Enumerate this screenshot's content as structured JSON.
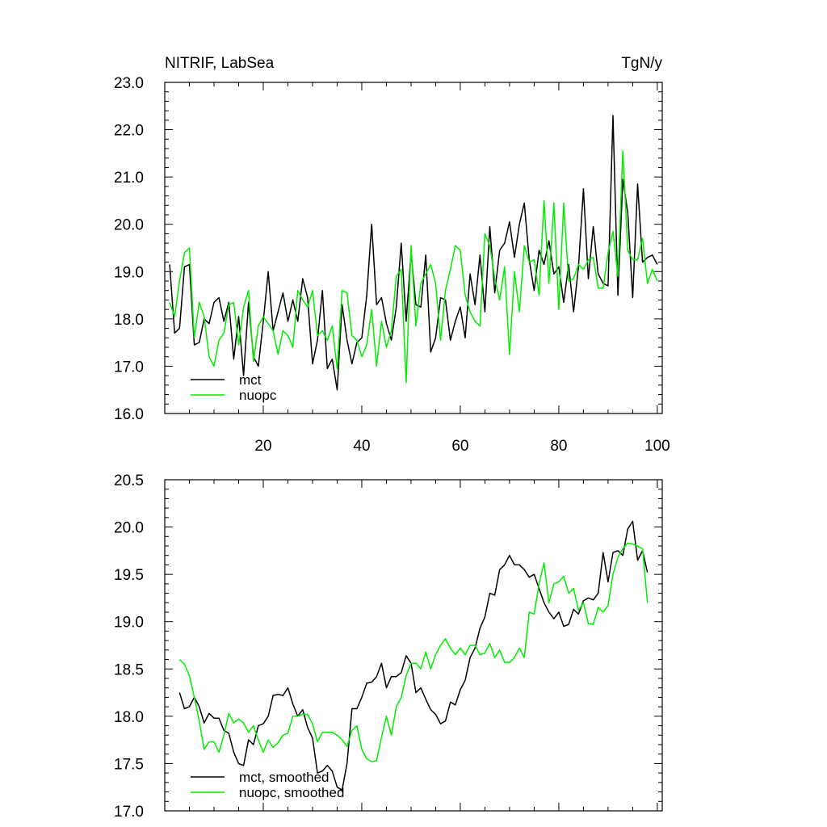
{
  "chart_data": [
    {
      "type": "line",
      "title": "NITRIF, LabSea",
      "units": "TgN/y",
      "xlim": [
        0,
        101
      ],
      "ylim": [
        16.0,
        23.0
      ],
      "x_ticks": [
        20,
        40,
        60,
        80,
        100
      ],
      "y_ticks": [
        "16.0",
        "17.0",
        "18.0",
        "19.0",
        "20.0",
        "21.0",
        "22.0",
        "23.0"
      ],
      "legend_position": "bottom-left",
      "grid": false,
      "x": [
        1,
        2,
        3,
        4,
        5,
        6,
        7,
        8,
        9,
        10,
        11,
        12,
        13,
        14,
        15,
        16,
        17,
        18,
        19,
        20,
        21,
        22,
        23,
        24,
        25,
        26,
        27,
        28,
        29,
        30,
        31,
        32,
        33,
        34,
        35,
        36,
        37,
        38,
        39,
        40,
        41,
        42,
        43,
        44,
        45,
        46,
        47,
        48,
        49,
        50,
        51,
        52,
        53,
        54,
        55,
        56,
        57,
        58,
        59,
        60,
        61,
        62,
        63,
        64,
        65,
        66,
        67,
        68,
        69,
        70,
        71,
        72,
        73,
        74,
        75,
        76,
        77,
        78,
        79,
        80,
        81,
        82,
        83,
        84,
        85,
        86,
        87,
        88,
        89,
        90,
        91,
        92,
        93,
        94,
        95,
        96,
        97,
        98,
        99,
        100
      ],
      "series": [
        {
          "name": "mct",
          "color": "#000000",
          "values": [
            19.15,
            17.7,
            17.8,
            19.1,
            19.15,
            17.45,
            17.5,
            18.0,
            17.9,
            18.35,
            18.45,
            17.95,
            18.35,
            17.15,
            18.05,
            16.8,
            18.35,
            17.2,
            17.0,
            17.95,
            19.0,
            17.75,
            18.15,
            18.55,
            17.95,
            18.4,
            17.95,
            18.85,
            18.45,
            17.05,
            17.55,
            18.6,
            16.95,
            17.15,
            16.5,
            18.3,
            17.55,
            17.05,
            17.5,
            17.6,
            18.5,
            20.0,
            18.3,
            18.45,
            17.9,
            17.55,
            18.25,
            19.6,
            17.95,
            19.4,
            18.3,
            18.25,
            19.35,
            17.3,
            17.6,
            18.45,
            18.4,
            17.55,
            17.95,
            18.25,
            17.6,
            18.95,
            18.3,
            19.35,
            18.15,
            19.95,
            18.55,
            19.45,
            19.6,
            20.05,
            19.3,
            20.0,
            20.45,
            19.25,
            18.6,
            19.45,
            19.15,
            19.65,
            18.95,
            19.1,
            18.35,
            19.15,
            18.15,
            19.1,
            20.75,
            18.85,
            19.95,
            18.95,
            18.75,
            18.7,
            22.3,
            18.5,
            20.95,
            20.25,
            18.45,
            20.85,
            19.2,
            19.3,
            19.35,
            19.15
          ]
        },
        {
          "name": "nuopc",
          "color": "#00ee00",
          "values": [
            18.35,
            18.05,
            18.8,
            19.4,
            19.5,
            17.6,
            18.35,
            18.05,
            17.2,
            17.0,
            17.55,
            17.7,
            18.3,
            18.35,
            17.45,
            18.25,
            18.6,
            17.1,
            17.85,
            18.05,
            17.9,
            17.75,
            17.25,
            17.75,
            17.65,
            17.4,
            18.6,
            18.4,
            18.25,
            18.6,
            17.65,
            17.75,
            17.55,
            17.85,
            16.95,
            18.6,
            18.55,
            17.65,
            17.55,
            17.2,
            17.45,
            18.2,
            17.0,
            17.95,
            17.4,
            17.75,
            18.9,
            19.05,
            16.65,
            19.55,
            17.85,
            18.75,
            18.95,
            19.15,
            18.75,
            17.55,
            18.6,
            19.05,
            19.55,
            19.45,
            18.5,
            18.15,
            17.95,
            17.85,
            19.8,
            19.55,
            18.85,
            18.4,
            19.1,
            17.25,
            19.0,
            18.15,
            19.55,
            19.2,
            19.25,
            18.5,
            20.5,
            18.75,
            20.45,
            18.2,
            20.45,
            18.8,
            18.85,
            19.15,
            19.05,
            19.25,
            19.3,
            18.65,
            18.65,
            19.4,
            19.85,
            18.9,
            21.55,
            19.45,
            19.25,
            19.25,
            19.7,
            18.75,
            19.05,
            18.8
          ]
        }
      ]
    },
    {
      "type": "line",
      "title": "",
      "xlim": [
        0,
        101
      ],
      "ylim": [
        17.0,
        20.5
      ],
      "y_ticks": [
        "17.0",
        "17.5",
        "18.0",
        "18.5",
        "19.0",
        "19.5",
        "20.0",
        "20.5"
      ],
      "legend_position": "bottom-left",
      "grid": false,
      "x": [
        3,
        4,
        5,
        6,
        7,
        8,
        9,
        10,
        11,
        12,
        13,
        14,
        15,
        16,
        17,
        18,
        19,
        20,
        21,
        22,
        23,
        24,
        25,
        26,
        27,
        28,
        29,
        30,
        31,
        32,
        33,
        34,
        35,
        36,
        37,
        38,
        39,
        40,
        41,
        42,
        43,
        44,
        45,
        46,
        47,
        48,
        49,
        50,
        51,
        52,
        53,
        54,
        55,
        56,
        57,
        58,
        59,
        60,
        61,
        62,
        63,
        64,
        65,
        66,
        67,
        68,
        69,
        70,
        71,
        72,
        73,
        74,
        75,
        76,
        77,
        78,
        79,
        80,
        81,
        82,
        83,
        84,
        85,
        86,
        87,
        88,
        89,
        90,
        91,
        92,
        93,
        94,
        95,
        96,
        97,
        98
      ],
      "series": [
        {
          "name": "mct, smoothed",
          "color": "#000000",
          "values": [
            18.25,
            18.08,
            18.1,
            18.2,
            18.1,
            17.93,
            18.03,
            17.98,
            17.98,
            17.85,
            17.82,
            17.62,
            17.5,
            17.48,
            17.75,
            17.7,
            17.9,
            17.92,
            18.0,
            18.22,
            18.23,
            18.22,
            18.3,
            18.13,
            18.0,
            18.07,
            17.88,
            17.77,
            17.4,
            17.42,
            17.48,
            17.42,
            17.25,
            17.22,
            17.5,
            18.08,
            18.08,
            18.2,
            18.35,
            18.36,
            18.42,
            18.56,
            18.3,
            18.42,
            18.42,
            18.46,
            18.64,
            18.56,
            18.25,
            18.3,
            18.18,
            18.07,
            18.02,
            17.92,
            17.95,
            18.15,
            18.12,
            18.28,
            18.38,
            18.62,
            18.72,
            18.93,
            19.05,
            19.3,
            19.28,
            19.55,
            19.6,
            19.7,
            19.6,
            19.6,
            19.55,
            19.47,
            19.5,
            19.35,
            19.2,
            19.1,
            19.03,
            19.1,
            18.95,
            18.97,
            19.13,
            19.08,
            19.22,
            19.25,
            19.23,
            19.3,
            19.73,
            19.42,
            19.73,
            19.75,
            19.7,
            19.98,
            20.06,
            19.65,
            19.75,
            19.52
          ]
        },
        {
          "name": "nuopc, smoothed",
          "color": "#00ee00",
          "values": [
            18.6,
            18.55,
            18.43,
            18.2,
            17.95,
            17.65,
            17.73,
            17.73,
            17.62,
            17.8,
            18.03,
            17.93,
            17.97,
            17.93,
            17.83,
            17.9,
            17.75,
            17.62,
            17.75,
            17.67,
            17.72,
            17.8,
            17.82,
            18.0,
            18.0,
            18.02,
            18.02,
            17.92,
            17.73,
            17.83,
            17.83,
            17.83,
            17.8,
            17.75,
            17.68,
            17.85,
            17.9,
            17.65,
            17.55,
            17.52,
            17.53,
            17.78,
            18.0,
            17.8,
            18.1,
            18.2,
            18.43,
            18.56,
            18.56,
            18.5,
            18.68,
            18.5,
            18.65,
            18.75,
            18.82,
            18.72,
            18.65,
            18.72,
            18.65,
            18.75,
            18.75,
            18.65,
            18.67,
            18.77,
            18.62,
            18.7,
            18.57,
            18.57,
            18.62,
            18.72,
            18.62,
            19.1,
            19.08,
            19.4,
            19.62,
            19.2,
            19.4,
            19.42,
            19.48,
            19.3,
            19.35,
            19.12,
            19.2,
            18.98,
            18.97,
            19.15,
            19.1,
            19.17,
            19.5,
            19.68,
            19.77,
            19.83,
            19.82,
            19.8,
            19.77,
            19.2
          ]
        }
      ]
    }
  ]
}
